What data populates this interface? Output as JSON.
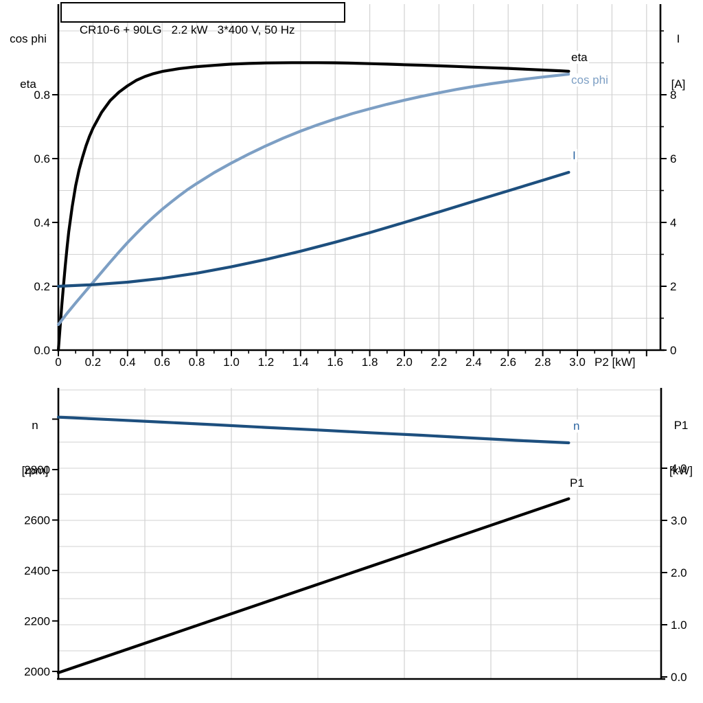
{
  "title_box": "CR10-6 + 90LG   2.2 kW   3*400 V, 50 Hz",
  "colors": {
    "curve_black": "#000000",
    "curve_dark_blue": "#1d4f7e",
    "curve_light_blue": "#7d9fc4",
    "label_blue": "#2b64a0",
    "grid": "#d2d2d2",
    "axis": "#000000",
    "background": "#ffffff"
  },
  "labels": {
    "top_left_axis_line1": "cos phi",
    "top_left_axis_line2": "eta",
    "top_right_axis_line1": "I",
    "top_right_axis_line2": "[A]",
    "x_axis_label": "P2 [kW]",
    "bottom_left_axis_line1": "n",
    "bottom_left_axis_line2": "[rpm]",
    "bottom_right_axis_line1": "P1",
    "bottom_right_axis_line2": "[kW]",
    "curve_eta": "eta",
    "curve_cos_phi": "cos phi",
    "curve_current": "I",
    "curve_speed": "n",
    "curve_power": "P1"
  },
  "chart_data": [
    {
      "id": "motor-electrical",
      "type": "line",
      "title": "CR10-6 + 90LG  2.2 kW  3*400 V, 50 Hz",
      "grid": true,
      "legend_position": "end-of-curve",
      "x_axis": {
        "label": "P2 [kW]",
        "range": [
          0,
          3.48
        ],
        "tick_values": [
          0,
          0.2,
          0.4,
          0.6,
          0.8,
          1.0,
          1.2,
          1.4,
          1.6,
          1.8,
          2.0,
          2.2,
          2.4,
          2.6,
          2.8,
          3.0
        ],
        "tick_labels": [
          "0",
          "0.2",
          "0.4",
          "0.6",
          "0.8",
          "1.0",
          "1.2",
          "1.4",
          "1.6",
          "1.8",
          "2.0",
          "2.2",
          "2.4",
          "2.6",
          "2.8",
          "3.0"
        ],
        "minor_tick_step": 0.1
      },
      "left_axis": {
        "title": [
          "cos phi",
          "eta"
        ],
        "range": [
          0,
          1.084
        ],
        "tick_values": [
          0.0,
          0.2,
          0.4,
          0.6,
          0.8
        ],
        "tick_labels": [
          "0.0",
          "0.2",
          "0.4",
          "0.6",
          "0.8"
        ],
        "grid_step": 0.1
      },
      "right_axis": {
        "title": [
          "I",
          "[A]"
        ],
        "range": [
          0,
          10.84
        ],
        "tick_values": [
          0,
          2,
          4,
          6,
          8
        ],
        "tick_labels": [
          "0",
          "2",
          "4",
          "6",
          "8"
        ],
        "minor_tick_step": 1
      },
      "series": [
        {
          "name": "eta",
          "axis": "left",
          "color_key": "curve_black",
          "points": [
            [
              0,
              0
            ],
            [
              0.01,
              0.07
            ],
            [
              0.02,
              0.14
            ],
            [
              0.03,
              0.205
            ],
            [
              0.04,
              0.265
            ],
            [
              0.05,
              0.32
            ],
            [
              0.06,
              0.37
            ],
            [
              0.08,
              0.45
            ],
            [
              0.1,
              0.515
            ],
            [
              0.12,
              0.565
            ],
            [
              0.14,
              0.605
            ],
            [
              0.16,
              0.64
            ],
            [
              0.18,
              0.67
            ],
            [
              0.2,
              0.695
            ],
            [
              0.25,
              0.745
            ],
            [
              0.3,
              0.782
            ],
            [
              0.35,
              0.808
            ],
            [
              0.4,
              0.828
            ],
            [
              0.45,
              0.845
            ],
            [
              0.5,
              0.857
            ],
            [
              0.55,
              0.866
            ],
            [
              0.6,
              0.873
            ],
            [
              0.7,
              0.882
            ],
            [
              0.8,
              0.888
            ],
            [
              0.9,
              0.892
            ],
            [
              1,
              0.896
            ],
            [
              1.1,
              0.898
            ],
            [
              1.2,
              0.8995
            ],
            [
              1.35,
              0.9005
            ],
            [
              1.5,
              0.9005
            ],
            [
              1.6,
              0.9
            ],
            [
              1.7,
              0.899
            ],
            [
              1.8,
              0.8975
            ],
            [
              1.9,
              0.896
            ],
            [
              2,
              0.894
            ],
            [
              2.1,
              0.8925
            ],
            [
              2.2,
              0.8905
            ],
            [
              2.3,
              0.8885
            ],
            [
              2.4,
              0.8865
            ],
            [
              2.5,
              0.8845
            ],
            [
              2.6,
              0.8825
            ],
            [
              2.7,
              0.88
            ],
            [
              2.8,
              0.8775
            ],
            [
              2.9,
              0.875
            ],
            [
              2.95,
              0.8735
            ]
          ]
        },
        {
          "name": "cos phi",
          "axis": "left",
          "color_key": "curve_light_blue",
          "points": [
            [
              0,
              0.08
            ],
            [
              0.05,
              0.115
            ],
            [
              0.1,
              0.148
            ],
            [
              0.15,
              0.18
            ],
            [
              0.2,
              0.212
            ],
            [
              0.25,
              0.244
            ],
            [
              0.3,
              0.276
            ],
            [
              0.35,
              0.307
            ],
            [
              0.4,
              0.337
            ],
            [
              0.45,
              0.365
            ],
            [
              0.5,
              0.392
            ],
            [
              0.55,
              0.417
            ],
            [
              0.6,
              0.441
            ],
            [
              0.65,
              0.463
            ],
            [
              0.7,
              0.484
            ],
            [
              0.75,
              0.504
            ],
            [
              0.8,
              0.522
            ],
            [
              0.9,
              0.556
            ],
            [
              1,
              0.586
            ],
            [
              1.1,
              0.614
            ],
            [
              1.2,
              0.64
            ],
            [
              1.3,
              0.664
            ],
            [
              1.4,
              0.686
            ],
            [
              1.5,
              0.706
            ],
            [
              1.6,
              0.724
            ],
            [
              1.7,
              0.741
            ],
            [
              1.8,
              0.756
            ],
            [
              1.9,
              0.77
            ],
            [
              2,
              0.783
            ],
            [
              2.1,
              0.795
            ],
            [
              2.2,
              0.806
            ],
            [
              2.3,
              0.8165
            ],
            [
              2.4,
              0.826
            ],
            [
              2.5,
              0.8345
            ],
            [
              2.6,
              0.842
            ],
            [
              2.7,
              0.849
            ],
            [
              2.8,
              0.8555
            ],
            [
              2.9,
              0.8615
            ],
            [
              2.95,
              0.8645
            ]
          ]
        },
        {
          "name": "I",
          "axis": "right",
          "color_key": "curve_dark_blue",
          "points": [
            [
              0,
              2
            ],
            [
              0.2,
              2.05
            ],
            [
              0.4,
              2.13
            ],
            [
              0.6,
              2.25
            ],
            [
              0.8,
              2.41
            ],
            [
              1,
              2.61
            ],
            [
              1.2,
              2.84
            ],
            [
              1.4,
              3.1
            ],
            [
              1.6,
              3.38
            ],
            [
              1.8,
              3.68
            ],
            [
              2,
              4
            ],
            [
              2.2,
              4.33
            ],
            [
              2.4,
              4.66
            ],
            [
              2.6,
              4.99
            ],
            [
              2.8,
              5.32
            ],
            [
              2.95,
              5.57
            ]
          ]
        }
      ]
    },
    {
      "id": "speed-input-power",
      "type": "line",
      "grid": true,
      "legend_position": "end-of-curve",
      "x_axis": {
        "label": "",
        "range": [
          0,
          3.48
        ],
        "tick_values": [],
        "tick_labels": [],
        "shared_with": "motor-electrical"
      },
      "left_axis": {
        "title": [
          "n",
          "[rpm]"
        ],
        "range": [
          1970,
          3124
        ],
        "tick_values": [
          2000,
          2200,
          2400,
          2600,
          2800
        ],
        "tick_labels": [
          "2000",
          "2200",
          "2400",
          "2600",
          "2800"
        ],
        "unlabeled_tick_values": [
          3000
        ],
        "grid_step": 100
      },
      "right_axis": {
        "title": [
          "P1",
          "[kW]"
        ],
        "range": [
          -0.04,
          5.54
        ],
        "tick_values": [
          0,
          1,
          2,
          3,
          4
        ],
        "tick_labels": [
          "0.0",
          "1.0",
          "2.0",
          "3.0",
          "4.0"
        ],
        "grid_step": 0.5
      },
      "series": [
        {
          "name": "n",
          "axis": "left",
          "color_key": "curve_dark_blue",
          "points": [
            [
              0,
              3008
            ],
            [
              0.3,
              2998
            ],
            [
              0.6,
              2988
            ],
            [
              0.9,
              2978
            ],
            [
              1.2,
              2967
            ],
            [
              1.5,
              2957
            ],
            [
              1.8,
              2946
            ],
            [
              2.1,
              2936
            ],
            [
              2.4,
              2925
            ],
            [
              2.7,
              2914
            ],
            [
              2.95,
              2906
            ]
          ]
        },
        {
          "name": "P1",
          "axis": "right",
          "color_key": "curve_black",
          "points": [
            [
              0,
              0.08
            ],
            [
              0.5,
              0.645
            ],
            [
              1,
              1.21
            ],
            [
              1.5,
              1.775
            ],
            [
              2,
              2.34
            ],
            [
              2.5,
              2.905
            ],
            [
              2.95,
              3.415
            ]
          ]
        }
      ]
    }
  ]
}
